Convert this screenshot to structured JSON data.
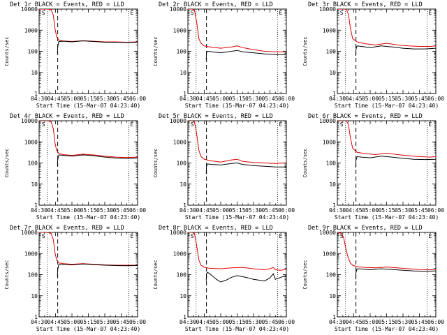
{
  "chart_data": [
    {
      "type": "line",
      "title": "Det 1r BLACK = Events, RED = LLD",
      "marker_left": "S",
      "marker_right": "E",
      "xlabel": "Start Time (15-Mar-07 04:23:40)",
      "ylabel": "Counts/sec",
      "x_ticks": [
        "04:30",
        "04:45",
        "05:00",
        "05:15",
        "05:30",
        "05:45",
        "06:00"
      ],
      "y_ticks": [
        "1",
        "10",
        "100",
        "1000",
        "10000"
      ],
      "xlim": [
        0,
        90
      ],
      "ylim": [
        1,
        10000
      ],
      "scale": "log",
      "vlines_dotted": [
        0,
        7.5,
        82,
        90
      ],
      "vline_dashed": 17,
      "series": [
        {
          "name": "LLD",
          "color": "#e00000",
          "x": [
            0,
            4,
            8,
            11,
            13,
            14.5,
            16,
            18,
            22,
            30,
            40,
            50,
            60,
            70,
            80,
            90
          ],
          "y": [
            10000,
            10000,
            10000,
            9500,
            5000,
            1200,
            500,
            340,
            310,
            290,
            320,
            300,
            280,
            280,
            270,
            280
          ]
        },
        {
          "name": "Events",
          "color": "#000000",
          "x": [
            16.8,
            17,
            18,
            22,
            30,
            40,
            50,
            60,
            70,
            80,
            90
          ],
          "y": [
            80,
            160,
            290,
            300,
            280,
            310,
            290,
            270,
            270,
            260,
            270
          ]
        }
      ]
    },
    {
      "type": "line",
      "title": "Det 2r BLACK = Events, RED = LLD",
      "marker_left": "S",
      "marker_right": "E",
      "xlabel": "Start Time (15-Mar-07 04:23:40)",
      "ylabel": "Counts/sec",
      "x_ticks": [
        "04:30",
        "04:45",
        "05:00",
        "05:15",
        "05:30",
        "05:45",
        "06:00"
      ],
      "y_ticks": [
        "1",
        "10",
        "100",
        "1000",
        "10000"
      ],
      "xlim": [
        0,
        90
      ],
      "ylim": [
        1,
        10000
      ],
      "scale": "log",
      "vlines_dotted": [
        0,
        7.5,
        82,
        90
      ],
      "vline_dashed": 17,
      "series": [
        {
          "name": "LLD",
          "color": "#e00000",
          "x": [
            0,
            4,
            6,
            8,
            10,
            12,
            15,
            20,
            30,
            40,
            45,
            50,
            60,
            70,
            80,
            90
          ],
          "y": [
            10000,
            10000,
            9000,
            2500,
            400,
            240,
            180,
            160,
            140,
            160,
            180,
            150,
            120,
            100,
            95,
            95
          ]
        },
        {
          "name": "Events",
          "color": "#000000",
          "x": [
            16.8,
            17,
            18,
            22,
            30,
            40,
            45,
            50,
            60,
            70,
            80,
            90
          ],
          "y": [
            40,
            90,
            100,
            95,
            85,
            100,
            110,
            95,
            85,
            75,
            70,
            70
          ]
        }
      ]
    },
    {
      "type": "line",
      "title": "Det 3r BLACK = Events, RED = LLD",
      "marker_left": "S",
      "marker_right": "E",
      "xlabel": "Start Time (15-Mar-07 04:23:40)",
      "ylabel": "Counts/sec",
      "x_ticks": [
        "04:30",
        "04:45",
        "05:00",
        "05:15",
        "05:30",
        "05:45",
        "06:00"
      ],
      "y_ticks": [
        "1",
        "10",
        "100",
        "1000",
        "10000"
      ],
      "xlim": [
        0,
        90
      ],
      "ylim": [
        1,
        10000
      ],
      "scale": "log",
      "vlines_dotted": [
        0,
        7.5,
        82,
        90
      ],
      "vline_dashed": 17,
      "series": [
        {
          "name": "LLD",
          "color": "#e00000",
          "x": [
            0,
            4,
            8,
            10,
            12,
            14,
            18,
            25,
            35,
            45,
            55,
            65,
            75,
            85,
            90
          ],
          "y": [
            10000,
            10000,
            10000,
            6000,
            1200,
            400,
            280,
            230,
            200,
            240,
            200,
            180,
            170,
            170,
            180
          ]
        },
        {
          "name": "Events",
          "color": "#000000",
          "x": [
            16.8,
            17,
            18,
            22,
            30,
            40,
            50,
            60,
            70,
            80,
            90
          ],
          "y": [
            60,
            120,
            180,
            170,
            150,
            180,
            160,
            140,
            130,
            130,
            140
          ]
        }
      ]
    },
    {
      "type": "line",
      "title": "Det 4r BLACK = Events, RED = LLD",
      "marker_left": "S",
      "marker_right": "E",
      "xlabel": "Start Time (15-Mar-07 04:23:40)",
      "ylabel": "Counts/sec",
      "x_ticks": [
        "04:30",
        "04:45",
        "05:00",
        "05:15",
        "05:30",
        "05:45",
        "06:00"
      ],
      "y_ticks": [
        "1",
        "10",
        "100",
        "1000",
        "10000"
      ],
      "xlim": [
        0,
        90
      ],
      "ylim": [
        1,
        10000
      ],
      "scale": "log",
      "vlines_dotted": [
        0,
        7.5,
        82,
        90
      ],
      "vline_dashed": 17,
      "series": [
        {
          "name": "LLD",
          "color": "#e00000",
          "x": [
            0,
            4,
            8,
            11,
            13,
            14.5,
            16,
            18,
            22,
            30,
            40,
            50,
            60,
            70,
            80,
            90
          ],
          "y": [
            10000,
            10000,
            10000,
            9000,
            4000,
            900,
            400,
            280,
            250,
            230,
            260,
            240,
            210,
            190,
            180,
            190
          ]
        },
        {
          "name": "Events",
          "color": "#000000",
          "x": [
            16.8,
            17,
            18,
            22,
            30,
            40,
            50,
            60,
            70,
            80,
            90
          ],
          "y": [
            70,
            140,
            240,
            230,
            210,
            240,
            220,
            190,
            170,
            165,
            170
          ]
        }
      ]
    },
    {
      "type": "line",
      "title": "Det 5r BLACK = Events, RED = LLD",
      "marker_left": "S",
      "marker_right": "E",
      "xlabel": "Start Time (15-Mar-07 04:23:40)",
      "ylabel": "Counts/sec",
      "x_ticks": [
        "04:30",
        "04:45",
        "05:00",
        "05:15",
        "05:30",
        "05:45",
        "06:00"
      ],
      "y_ticks": [
        "1",
        "10",
        "100",
        "1000",
        "10000"
      ],
      "xlim": [
        0,
        90
      ],
      "ylim": [
        1,
        10000
      ],
      "scale": "log",
      "vlines_dotted": [
        0,
        7.5,
        82,
        90
      ],
      "vline_dashed": 17,
      "series": [
        {
          "name": "LLD",
          "color": "#e00000",
          "x": [
            0,
            4,
            6,
            8,
            10,
            12,
            15,
            20,
            30,
            40,
            45,
            50,
            60,
            70,
            80,
            90
          ],
          "y": [
            10000,
            10000,
            9000,
            2500,
            400,
            200,
            150,
            130,
            110,
            140,
            150,
            120,
            105,
            100,
            95,
            100
          ]
        },
        {
          "name": "Events",
          "color": "#000000",
          "x": [
            16.8,
            17,
            18,
            22,
            30,
            40,
            45,
            50,
            60,
            70,
            80,
            90
          ],
          "y": [
            30,
            70,
            90,
            85,
            80,
            95,
            100,
            85,
            75,
            70,
            65,
            65
          ]
        }
      ]
    },
    {
      "type": "line",
      "title": "Det 6r BLACK = Events, RED = LLD",
      "marker_left": "S",
      "marker_right": "E",
      "xlabel": "Start Time (15-Mar-07 04:23:40)",
      "ylabel": "Counts/sec",
      "x_ticks": [
        "04:30",
        "04:45",
        "05:00",
        "05:15",
        "05:30",
        "05:45",
        "06:00"
      ],
      "y_ticks": [
        "1",
        "10",
        "100",
        "1000",
        "10000"
      ],
      "xlim": [
        0,
        90
      ],
      "ylim": [
        1,
        10000
      ],
      "scale": "log",
      "vlines_dotted": [
        0,
        7.5,
        82,
        90
      ],
      "vline_dashed": 17,
      "series": [
        {
          "name": "LLD",
          "color": "#e00000",
          "x": [
            0,
            4,
            8,
            10,
            12,
            14,
            18,
            25,
            35,
            45,
            55,
            65,
            75,
            85,
            90
          ],
          "y": [
            10000,
            10000,
            10000,
            7000,
            1500,
            500,
            320,
            280,
            250,
            290,
            250,
            220,
            200,
            190,
            200
          ]
        },
        {
          "name": "Events",
          "color": "#000000",
          "x": [
            16.8,
            17,
            18,
            22,
            30,
            40,
            50,
            60,
            70,
            80,
            90
          ],
          "y": [
            60,
            130,
            200,
            190,
            175,
            210,
            190,
            165,
            150,
            145,
            150
          ]
        }
      ]
    },
    {
      "type": "line",
      "title": "Det 7r BLACK = Events, RED = LLD",
      "marker_left": "S",
      "marker_right": "E",
      "xlabel": "Start Time (15-Mar-07 04:23:40)",
      "ylabel": "Counts/sec",
      "x_ticks": [
        "04:30",
        "04:45",
        "05:00",
        "05:15",
        "05:30",
        "05:45",
        "06:00"
      ],
      "y_ticks": [
        "1",
        "10",
        "100",
        "1000",
        "10000"
      ],
      "xlim": [
        0,
        90
      ],
      "ylim": [
        1,
        10000
      ],
      "scale": "log",
      "vlines_dotted": [
        0,
        7.5,
        82,
        90
      ],
      "vline_dashed": 17,
      "series": [
        {
          "name": "LLD",
          "color": "#e00000",
          "x": [
            0,
            4,
            8,
            11,
            13,
            14.5,
            16,
            18,
            22,
            30,
            40,
            50,
            60,
            70,
            80,
            90
          ],
          "y": [
            10000,
            10000,
            10000,
            9000,
            4500,
            1100,
            500,
            360,
            330,
            310,
            330,
            310,
            290,
            280,
            280,
            280
          ]
        },
        {
          "name": "Events",
          "color": "#000000",
          "x": [
            16.8,
            17,
            18,
            22,
            30,
            40,
            50,
            60,
            70,
            80,
            90
          ],
          "y": [
            80,
            170,
            300,
            310,
            290,
            320,
            300,
            280,
            270,
            265,
            270
          ]
        }
      ]
    },
    {
      "type": "line",
      "title": "Det 8r BLACK = Events, RED = LLD",
      "marker_left": "S",
      "marker_right": "E",
      "xlabel": "Start Time (15-Mar-07 04:23:40)",
      "ylabel": "Counts/sec",
      "x_ticks": [
        "04:30",
        "04:45",
        "05:00",
        "05:15",
        "05:30",
        "05:45",
        "06:00"
      ],
      "y_ticks": [
        "1",
        "10",
        "100",
        "1000",
        "10000"
      ],
      "xlim": [
        0,
        90
      ],
      "ylim": [
        1,
        10000
      ],
      "scale": "log",
      "vlines_dotted": [
        0,
        7.5,
        82,
        90
      ],
      "vline_dashed": 17,
      "series": [
        {
          "name": "LLD",
          "color": "#e00000",
          "x": [
            0,
            4,
            6,
            8,
            10,
            12,
            15,
            20,
            30,
            40,
            50,
            60,
            70,
            75,
            78,
            80,
            85,
            90
          ],
          "y": [
            10000,
            10000,
            9000,
            2500,
            500,
            280,
            220,
            200,
            190,
            210,
            220,
            190,
            170,
            190,
            220,
            170,
            160,
            180
          ]
        },
        {
          "name": "Events",
          "color": "#000000",
          "x": [
            16.8,
            17,
            18,
            22,
            26,
            30,
            35,
            40,
            45,
            50,
            55,
            60,
            65,
            70,
            75,
            78,
            80,
            85,
            90
          ],
          "y": [
            50,
            110,
            130,
            90,
            60,
            45,
            55,
            75,
            90,
            80,
            70,
            60,
            55,
            50,
            70,
            110,
            60,
            75,
            90
          ]
        }
      ]
    },
    {
      "type": "line",
      "title": "Det 9r BLACK = Events, RED = LLD",
      "marker_left": "S",
      "marker_right": "E",
      "xlabel": "Start Time (15-Mar-07 04:23:40)",
      "ylabel": "Counts/sec",
      "x_ticks": [
        "04:30",
        "04:45",
        "05:00",
        "05:15",
        "05:30",
        "05:45",
        "06:00"
      ],
      "y_ticks": [
        "1",
        "10",
        "100",
        "1000",
        "10000"
      ],
      "xlim": [
        0,
        90
      ],
      "ylim": [
        1,
        10000
      ],
      "scale": "log",
      "vlines_dotted": [
        0,
        7.5,
        82,
        90
      ],
      "vline_dashed": 17,
      "series": [
        {
          "name": "LLD",
          "color": "#e00000",
          "x": [
            0,
            4,
            6,
            8,
            10,
            12,
            14,
            18,
            25,
            35,
            45,
            55,
            65,
            75,
            85,
            90
          ],
          "y": [
            10000,
            9000,
            5000,
            1500,
            600,
            350,
            280,
            240,
            220,
            210,
            230,
            210,
            190,
            175,
            170,
            175
          ]
        },
        {
          "name": "Events",
          "color": "#000000",
          "x": [
            16.8,
            17,
            18,
            22,
            30,
            40,
            50,
            60,
            70,
            80,
            90
          ],
          "y": [
            60,
            120,
            190,
            185,
            170,
            190,
            175,
            160,
            150,
            145,
            150
          ]
        }
      ]
    }
  ]
}
